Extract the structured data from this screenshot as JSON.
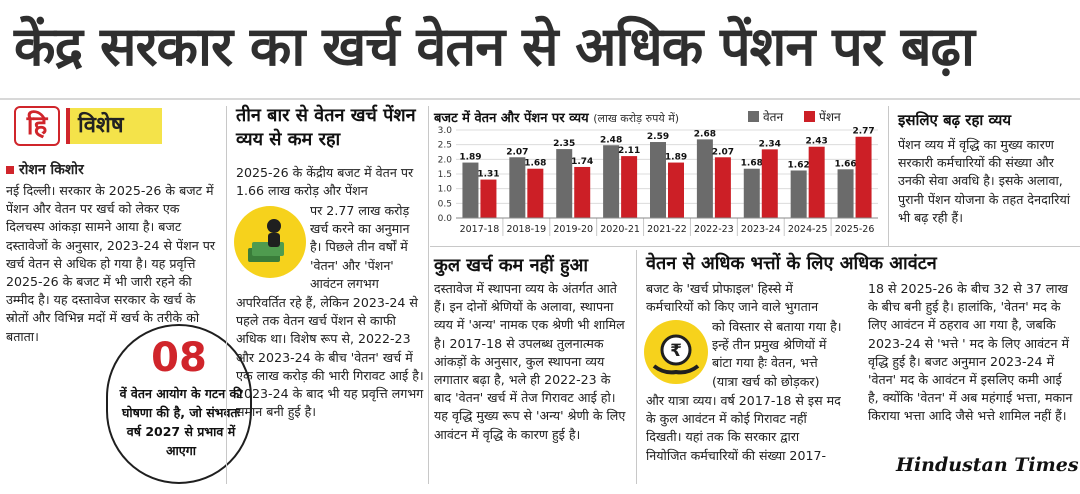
{
  "headline": "केंद्र सरकार का खर्च वेतन से अधिक पेंशन पर बढ़ा",
  "badge": {
    "logo_glyph": "हि",
    "label": "विशेष"
  },
  "author": "रोशन किशोर",
  "left_column": {
    "text": "नई दिल्ली। सरकार के 2025-26 के बजट में पेंशन और वेतन पर खर्च को लेकर एक दिलचस्प आंकड़ा सामने आया है। बजट दस्तावेजों के अनुसार, 2023-24 से पेंशन पर खर्च वेतन से अधिक हो गया है। यह प्रवृत्ति 2025-26 के बजट में भी जारी रहने की उम्मीद है। यह दस्तावेज सरकार के खर्च के स्रोतों और विभिन्न मदों में खर्च के तरीके को बताता।"
  },
  "callout": {
    "number": "08",
    "text": "वें वेतन आयोग के गटन की घोषणा की है, जो संभवतः वर्ष 2027 से प्रभाव में आएगा"
  },
  "section2": {
    "heading": "तीन बार से वेतन खर्च पेंशन व्यय से कम रहा",
    "text_top": "2025-26 के केंद्रीय बजट में वेतन पर 1.66 लाख करोड़ और पेंशन",
    "text_side": "पर 2.77 लाख करोड़ खर्च करने का अनुमान है। पिछले तीन वर्षों में 'वेतन' और 'पेंशन' आवंटन लगभग",
    "text_bottom": "अपरिवर्तित रहे हैं, लेकिन 2023-24 से पहले तक वेतन खर्च पेंशन से काफी अधिक था। विशेष रूप से, 2022-23 और 2023-24 के बीच 'वेतन' खर्च में एक लाख करोड़ की भारी गिरावट आई है। 2023-24 के बाद भी यह प्रवृत्ति लगभग समान बनी हुई है।"
  },
  "chart_data": {
    "type": "bar",
    "title": "बजट में वेतन और पेंशन पर व्यय",
    "unit_note": "(लाख करोड़ रुपये में)",
    "categories": [
      "2017-18",
      "2018-19",
      "2019-20",
      "2020-21",
      "2021-22",
      "2022-23",
      "2023-24",
      "2024-25",
      "2025-26"
    ],
    "series": [
      {
        "name": "वेतन",
        "values": [
          1.89,
          2.07,
          2.35,
          2.48,
          2.59,
          2.68,
          1.68,
          1.62,
          1.66
        ],
        "color": "#6b6b6b"
      },
      {
        "name": "पेंशन",
        "values": [
          1.31,
          1.68,
          1.74,
          2.11,
          1.89,
          2.07,
          2.34,
          2.43,
          2.77
        ],
        "color": "#cc1f26"
      }
    ],
    "data_labels": {
      "वेतन": [
        "1.89",
        "2.07",
        "2.35",
        "2.48",
        "2.59",
        "2.68",
        "1.68",
        "1.62",
        "1.66"
      ],
      "पेंशन": [
        "1.31",
        "1.68",
        "1.74",
        "2.11",
        "1.89",
        "2.07",
        "2.34",
        "2.43",
        "2.77"
      ]
    },
    "yticks": [
      "0.0",
      "0.5",
      "1.0",
      "1.5",
      "2.0",
      "2.5",
      "3.0"
    ],
    "ylim": [
      0,
      3.0
    ],
    "grid": true,
    "legend_position": "top-right"
  },
  "section_right": {
    "heading": "इसलिए बढ़ रहा व्यय",
    "text": "पेंशन व्यय में वृद्धि का मुख्य कारण सरकारी कर्मचारियों की संख्या और उनकी सेवा अवधि है। इसके अलावा, पुरानी पेंशन योजना के तहत देनदारियां भी बढ़ रही हैं।"
  },
  "section3": {
    "heading": "कुल खर्च कम नहीं हुआ",
    "text": "दस्तावेज में स्थापना व्यय के अंतर्गत आते हैं। इन दोनों श्रेणियों के अलावा, स्थापना व्यय में 'अन्य' नामक एक श्रेणी भी शामिल है। 2017-18 से उपलब्ध तुलनात्मक आंकड़ों के अनुसार, कुल स्थापना व्यय लगातार बढ़ा है, भले ही 2022-23 के बाद 'वेतन' खर्च में तेज गिरावट आई हो। यह वृद्धि मुख्य रूप से 'अन्य' श्रेणी के लिए आवंटन में वृद्धि के कारण हुई है।"
  },
  "section4": {
    "heading": "वेतन से अधिक भत्तों के लिए अधिक आवंटन",
    "text_top": "बजट के 'खर्च प्रोफाइल' हिस्से में कर्मचारियों को किए जाने वाले भुगतान",
    "text_side": "को विस्तार से बताया गया है। इन्हें तीन प्रमुख श्रेणियों में बांटा गया हैः वेतन, भत्ते (यात्रा खर्च को छोड़कर)",
    "text_bottom": "और यात्रा व्यय। वर्ष 2017-18 से इस मद के कुल आवंटन में कोई गिरावट नहीं दिखती। यहां तक कि सरकार द्वारा नियोजित कर्मचारियों की संख्या 2017-",
    "text_col2": "18 से 2025-26 के बीच 32 से 37 लाख के बीच बनी हुई है। हालांकि, 'वेतन' मद के लिए आवंटन में ठहराव आ गया है, जबकि 2023-24 से 'भत्ते ' मद के लिए आवंटन में वृद्धि हुई है। बजट अनुमान 2023-24 में 'वेतन' मद के आवंटन में इसलिए कमी आई है, क्योंकि 'वेतन' में अब महंगाई भत्ता, मकान किराया भत्ता आदि जैसे भत्ते शामिल नहीं हैं।"
  },
  "brand": "Hindustan Times"
}
